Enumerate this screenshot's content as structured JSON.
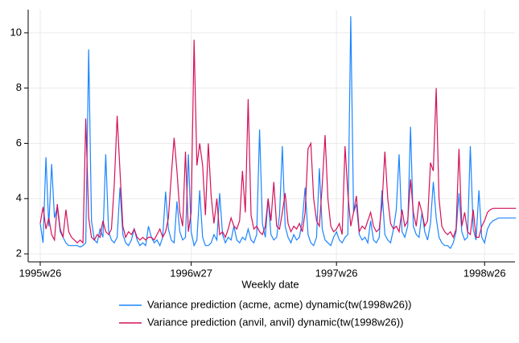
{
  "chart_data": {
    "type": "line",
    "x_label": "Weekly date",
    "x": [
      "1995w26",
      "1995w27",
      "1995w28",
      "1995w29",
      "1995w30",
      "1995w31",
      "1995w32",
      "1995w33",
      "1995w34",
      "1995w35",
      "1995w36",
      "1995w37",
      "1995w38",
      "1995w39",
      "1995w40",
      "1995w41",
      "1995w42",
      "1995w43",
      "1995w44",
      "1995w45",
      "1995w46",
      "1995w47",
      "1995w48",
      "1995w49",
      "1995w50",
      "1995w51",
      "1995w52",
      "1996w1",
      "1996w2",
      "1996w3",
      "1996w4",
      "1996w5",
      "1996w6",
      "1996w7",
      "1996w8",
      "1996w9",
      "1996w10",
      "1996w11",
      "1996w12",
      "1996w13",
      "1996w14",
      "1996w15",
      "1996w16",
      "1996w17",
      "1996w18",
      "1996w19",
      "1996w20",
      "1996w21",
      "1996w22",
      "1996w23",
      "1996w24",
      "1996w25",
      "1996w26",
      "1996w27",
      "1996w28",
      "1996w29",
      "1996w30",
      "1996w31",
      "1996w32",
      "1996w33",
      "1996w34",
      "1996w35",
      "1996w36",
      "1996w37",
      "1996w38",
      "1996w39",
      "1996w40",
      "1996w41",
      "1996w42",
      "1996w43",
      "1996w44",
      "1996w45",
      "1996w46",
      "1996w47",
      "1996w48",
      "1996w49",
      "1996w50",
      "1996w51",
      "1996w52",
      "1997w1",
      "1997w2",
      "1997w3",
      "1997w4",
      "1997w5",
      "1997w6",
      "1997w7",
      "1997w8",
      "1997w9",
      "1997w10",
      "1997w11",
      "1997w12",
      "1997w13",
      "1997w14",
      "1997w15",
      "1997w16",
      "1997w17",
      "1997w18",
      "1997w19",
      "1997w20",
      "1997w21",
      "1997w22",
      "1997w23",
      "1997w24",
      "1997w25",
      "1997w26",
      "1997w27",
      "1997w28",
      "1997w29",
      "1997w30",
      "1997w31",
      "1997w32",
      "1997w33",
      "1997w34",
      "1997w35",
      "1997w36",
      "1997w37",
      "1997w38",
      "1997w39",
      "1997w40",
      "1997w41",
      "1997w42",
      "1997w43",
      "1997w44",
      "1997w45",
      "1997w46",
      "1997w47",
      "1997w48",
      "1997w49",
      "1997w50",
      "1997w51",
      "1997w52",
      "1998w1",
      "1998w2",
      "1998w3",
      "1998w4",
      "1998w5",
      "1998w6",
      "1998w7",
      "1998w8",
      "1998w9",
      "1998w10",
      "1998w11",
      "1998w12",
      "1998w13",
      "1998w14",
      "1998w15",
      "1998w16",
      "1998w17",
      "1998w18",
      "1998w19",
      "1998w20",
      "1998w21",
      "1998w22",
      "1998w23",
      "1998w24",
      "1998w25",
      "1998w26",
      "1998w27",
      "1998w28",
      "1998w29",
      "1998w30",
      "1998w31",
      "1998w32",
      "1998w33",
      "1998w34",
      "1998w35",
      "1998w36",
      "1998w37"
    ],
    "xticks": [
      "1995w26",
      "1996w27",
      "1997w26",
      "1998w26"
    ],
    "ylim": [
      1.71,
      10.84
    ],
    "yticks": [
      2,
      4,
      6,
      8,
      10
    ],
    "grid": true,
    "legend": "bottom",
    "series": [
      {
        "name": "Variance prediction (acme, acme) dynamic(tw(1998w26))",
        "color": "#1a85ff",
        "values": [
          3.1,
          2.4,
          5.5,
          3.0,
          5.25,
          3.3,
          3.7,
          2.8,
          2.6,
          2.4,
          2.3,
          2.3,
          2.3,
          2.3,
          2.25,
          2.3,
          2.4,
          9.4,
          3.2,
          2.5,
          2.4,
          2.9,
          2.6,
          5.6,
          2.8,
          2.5,
          2.4,
          2.6,
          4.4,
          2.7,
          2.4,
          2.3,
          2.5,
          2.9,
          2.5,
          2.3,
          2.4,
          2.3,
          3.0,
          2.6,
          2.4,
          2.5,
          2.3,
          2.6,
          4.25,
          2.9,
          2.5,
          2.4,
          3.9,
          2.8,
          2.5,
          2.6,
          5.6,
          2.8,
          2.3,
          2.5,
          4.3,
          2.6,
          2.3,
          2.3,
          2.4,
          2.7,
          2.5,
          4.2,
          2.7,
          2.4,
          2.6,
          2.5,
          3.0,
          2.5,
          2.4,
          2.6,
          2.5,
          2.9,
          2.5,
          2.4,
          2.7,
          6.5,
          3.1,
          2.6,
          4.0,
          2.7,
          2.5,
          2.6,
          3.4,
          5.9,
          3.0,
          2.6,
          2.4,
          2.7,
          2.5,
          2.6,
          3.2,
          4.4,
          2.7,
          2.4,
          2.3,
          2.6,
          5.1,
          2.9,
          2.5,
          2.4,
          2.3,
          2.6,
          2.8,
          2.5,
          2.4,
          2.6,
          2.7,
          10.6,
          3.5,
          3.8,
          2.7,
          2.5,
          2.6,
          2.4,
          3.2,
          2.5,
          2.4,
          2.6,
          4.3,
          2.7,
          2.5,
          2.4,
          2.9,
          3.6,
          5.6,
          2.8,
          2.6,
          3.0,
          6.6,
          3.0,
          2.7,
          2.6,
          3.5,
          2.8,
          2.5,
          3.1,
          4.6,
          3.3,
          2.6,
          2.4,
          2.3,
          2.3,
          2.2,
          2.4,
          2.8,
          4.2,
          2.8,
          2.5,
          2.6,
          5.9,
          2.9,
          2.5,
          4.3,
          2.6,
          2.4,
          2.9,
          3.1,
          3.2,
          3.25,
          3.3,
          3.3,
          3.3,
          3.3,
          3.3,
          3.3,
          3.3
        ]
      },
      {
        "name": "Variance prediction (anvil, anvil) dynamic(tw(1998w26))",
        "color": "#d41159",
        "values": [
          3.1,
          3.7,
          2.9,
          3.3,
          2.7,
          2.5,
          3.8,
          2.9,
          2.6,
          3.6,
          2.8,
          2.6,
          2.5,
          2.4,
          2.5,
          2.4,
          6.9,
          3.3,
          2.6,
          2.5,
          2.7,
          2.6,
          3.2,
          2.8,
          2.7,
          2.9,
          4.5,
          7.0,
          5.0,
          3.0,
          2.6,
          2.8,
          2.7,
          2.9,
          2.6,
          2.5,
          2.6,
          2.5,
          2.6,
          2.6,
          2.5,
          2.7,
          2.9,
          2.6,
          2.8,
          3.3,
          4.8,
          6.2,
          5.0,
          3.5,
          3.0,
          5.7,
          2.8,
          3.5,
          9.75,
          5.2,
          6.0,
          5.2,
          3.4,
          6.0,
          4.1,
          3.1,
          4.0,
          2.7,
          2.8,
          2.6,
          2.9,
          3.3,
          3.0,
          2.9,
          3.2,
          5.0,
          3.5,
          7.6,
          3.4,
          2.9,
          3.0,
          2.8,
          2.7,
          3.0,
          4.0,
          3.2,
          4.6,
          3.0,
          2.9,
          3.5,
          4.2,
          3.1,
          2.8,
          3.0,
          2.9,
          3.1,
          2.8,
          3.5,
          5.8,
          6.0,
          4.0,
          3.2,
          3.0,
          4.5,
          6.3,
          4.0,
          3.0,
          2.8,
          2.9,
          3.1,
          2.7,
          5.9,
          4.2,
          3.0,
          3.5,
          4.1,
          2.8,
          3.0,
          2.9,
          3.2,
          3.5,
          3.0,
          2.8,
          2.9,
          3.8,
          5.7,
          4.0,
          3.1,
          2.9,
          3.0,
          2.8,
          3.6,
          3.0,
          3.2,
          4.7,
          3.5,
          3.0,
          3.9,
          3.5,
          3.0,
          3.2,
          5.3,
          5.0,
          8.0,
          4.0,
          3.0,
          2.8,
          2.7,
          2.8,
          2.6,
          2.9,
          5.8,
          3.0,
          3.5,
          2.8,
          2.7,
          3.6,
          2.6,
          2.6,
          3.0,
          3.2,
          3.5,
          3.6,
          3.65,
          3.65,
          3.65,
          3.65,
          3.65,
          3.65,
          3.65,
          3.65,
          3.65
        ]
      }
    ]
  }
}
